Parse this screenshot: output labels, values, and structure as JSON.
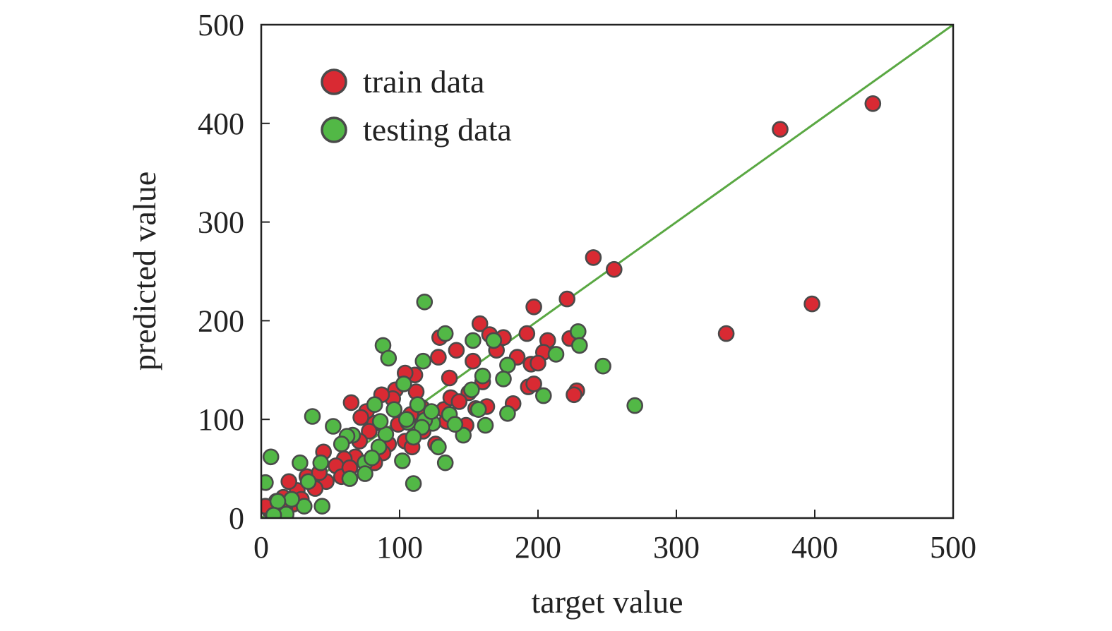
{
  "chart_data": {
    "type": "scatter",
    "xlabel": "target value",
    "ylabel": "predicted value",
    "xlim": [
      0,
      500
    ],
    "ylim": [
      0,
      500
    ],
    "xticks": [
      "0",
      "100",
      "200",
      "300",
      "400",
      "500"
    ],
    "yticks": [
      "0",
      "100",
      "200",
      "300",
      "400",
      "500"
    ],
    "grid": false,
    "legend": {
      "placement": "top-left"
    },
    "reference_line": {
      "from": [
        0,
        0
      ],
      "to": [
        500,
        500
      ],
      "color": "#5aa843"
    },
    "series": [
      {
        "name": "train data",
        "color": "#d92a33",
        "points": [
          [
            442,
            420
          ],
          [
            375,
            394
          ],
          [
            398,
            217
          ],
          [
            336,
            187
          ],
          [
            240,
            264
          ],
          [
            255,
            252
          ],
          [
            197,
            214
          ],
          [
            221,
            222
          ],
          [
            158,
            197
          ],
          [
            165,
            186
          ],
          [
            175,
            183
          ],
          [
            192,
            187
          ],
          [
            207,
            180
          ],
          [
            223,
            182
          ],
          [
            204,
            168
          ],
          [
            185,
            163
          ],
          [
            195,
            156
          ],
          [
            200,
            157
          ],
          [
            228,
            129
          ],
          [
            226,
            125
          ],
          [
            193,
            133
          ],
          [
            197,
            136
          ],
          [
            182,
            116
          ],
          [
            136,
            142
          ],
          [
            129,
            183
          ],
          [
            128,
            163
          ],
          [
            141,
            170
          ],
          [
            153,
            159
          ],
          [
            160,
            138
          ],
          [
            150,
            127
          ],
          [
            163,
            113
          ],
          [
            148,
            94
          ],
          [
            111,
            145
          ],
          [
            104,
            147
          ],
          [
            97,
            130
          ],
          [
            95,
            121
          ],
          [
            87,
            125
          ],
          [
            76,
            108
          ],
          [
            65,
            117
          ],
          [
            72,
            102
          ],
          [
            82,
            96
          ],
          [
            99,
            95
          ],
          [
            104,
            78
          ],
          [
            109,
            72
          ],
          [
            121,
            102
          ],
          [
            132,
            110
          ],
          [
            137,
            122
          ],
          [
            117,
            88
          ],
          [
            126,
            75
          ],
          [
            92,
            75
          ],
          [
            88,
            66
          ],
          [
            82,
            56
          ],
          [
            68,
            62
          ],
          [
            60,
            60
          ],
          [
            45,
            67
          ],
          [
            54,
            53
          ],
          [
            58,
            42
          ],
          [
            47,
            37
          ],
          [
            39,
            30
          ],
          [
            33,
            42
          ],
          [
            26,
            28
          ],
          [
            20,
            37
          ],
          [
            16,
            21
          ],
          [
            11,
            17
          ],
          [
            6,
            8
          ],
          [
            3,
            12
          ],
          [
            23,
            14
          ],
          [
            29,
            19
          ],
          [
            17,
            9
          ],
          [
            42,
            46
          ],
          [
            64,
            51
          ],
          [
            112,
            128
          ],
          [
            116,
            112
          ],
          [
            134,
            98
          ],
          [
            108,
            105
          ],
          [
            78,
            88
          ],
          [
            71,
            78
          ],
          [
            155,
            111
          ],
          [
            143,
            118
          ],
          [
            170,
            170
          ]
        ]
      },
      {
        "name": "testing data",
        "color": "#52b846",
        "points": [
          [
            118,
            219
          ],
          [
            133,
            187
          ],
          [
            229,
            189
          ],
          [
            230,
            175
          ],
          [
            153,
            180
          ],
          [
            168,
            180
          ],
          [
            88,
            175
          ],
          [
            92,
            162
          ],
          [
            117,
            159
          ],
          [
            213,
            166
          ],
          [
            247,
            154
          ],
          [
            178,
            155
          ],
          [
            175,
            141
          ],
          [
            270,
            114
          ],
          [
            204,
            124
          ],
          [
            178,
            106
          ],
          [
            162,
            94
          ],
          [
            160,
            144
          ],
          [
            152,
            130
          ],
          [
            157,
            110
          ],
          [
            146,
            84
          ],
          [
            136,
            105
          ],
          [
            133,
            56
          ],
          [
            128,
            72
          ],
          [
            124,
            96
          ],
          [
            118,
            99
          ],
          [
            113,
            115
          ],
          [
            106,
            97
          ],
          [
            103,
            136
          ],
          [
            102,
            58
          ],
          [
            110,
            35
          ],
          [
            90,
            85
          ],
          [
            86,
            98
          ],
          [
            82,
            115
          ],
          [
            75,
            56
          ],
          [
            66,
            84
          ],
          [
            62,
            83
          ],
          [
            58,
            75
          ],
          [
            52,
            93
          ],
          [
            37,
            103
          ],
          [
            43,
            56
          ],
          [
            28,
            56
          ],
          [
            34,
            37
          ],
          [
            31,
            12
          ],
          [
            44,
            12
          ],
          [
            22,
            19
          ],
          [
            12,
            17
          ],
          [
            7,
            62
          ],
          [
            3,
            36
          ],
          [
            64,
            40
          ],
          [
            75,
            45
          ],
          [
            85,
            72
          ],
          [
            96,
            110
          ],
          [
            105,
            100
          ],
          [
            116,
            92
          ],
          [
            123,
            108
          ],
          [
            140,
            95
          ],
          [
            110,
            82
          ],
          [
            80,
            61
          ],
          [
            18,
            4
          ],
          [
            9,
            3
          ]
        ]
      }
    ]
  }
}
